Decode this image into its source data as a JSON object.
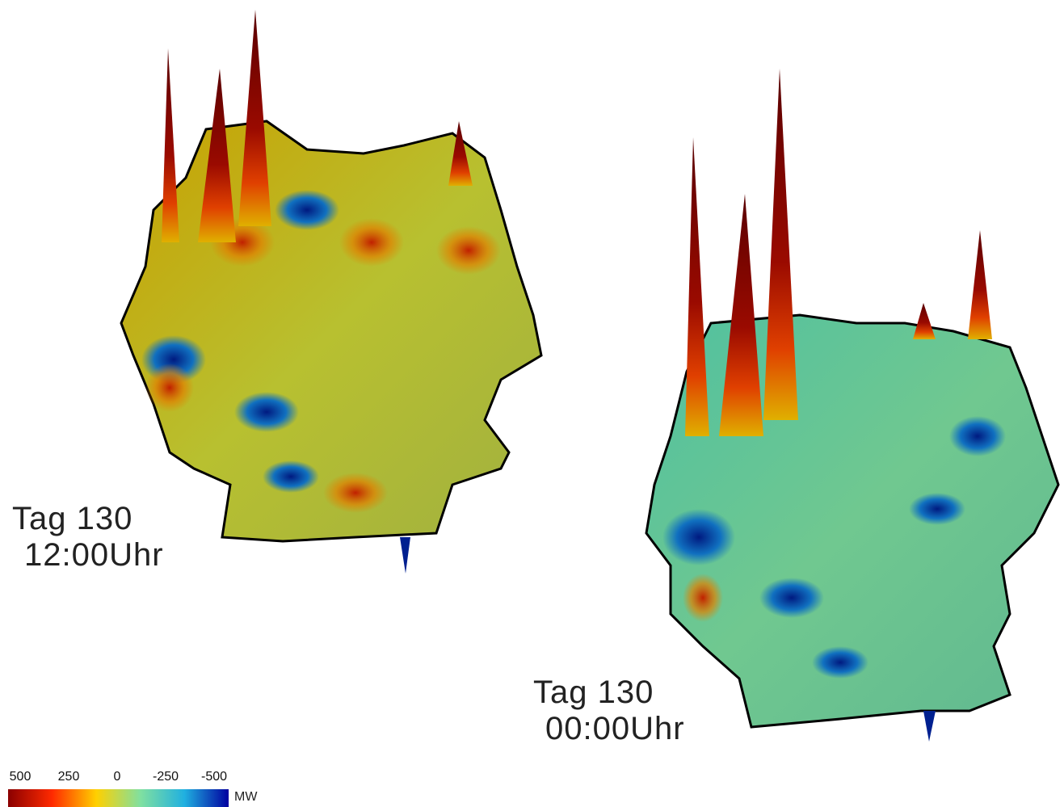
{
  "panels": [
    {
      "day": "Tag 130",
      "time": "12:00Uhr"
    },
    {
      "day": "Tag 130",
      "time": "00:00Uhr"
    }
  ],
  "colorbar": {
    "ticks": [
      500,
      250,
      0,
      -250,
      -500
    ],
    "unit": "MW",
    "colors": [
      "#8b0000",
      "#ff2a00",
      "#ffd000",
      "#80e0a0",
      "#20b0e0",
      "#0000a0"
    ]
  }
}
